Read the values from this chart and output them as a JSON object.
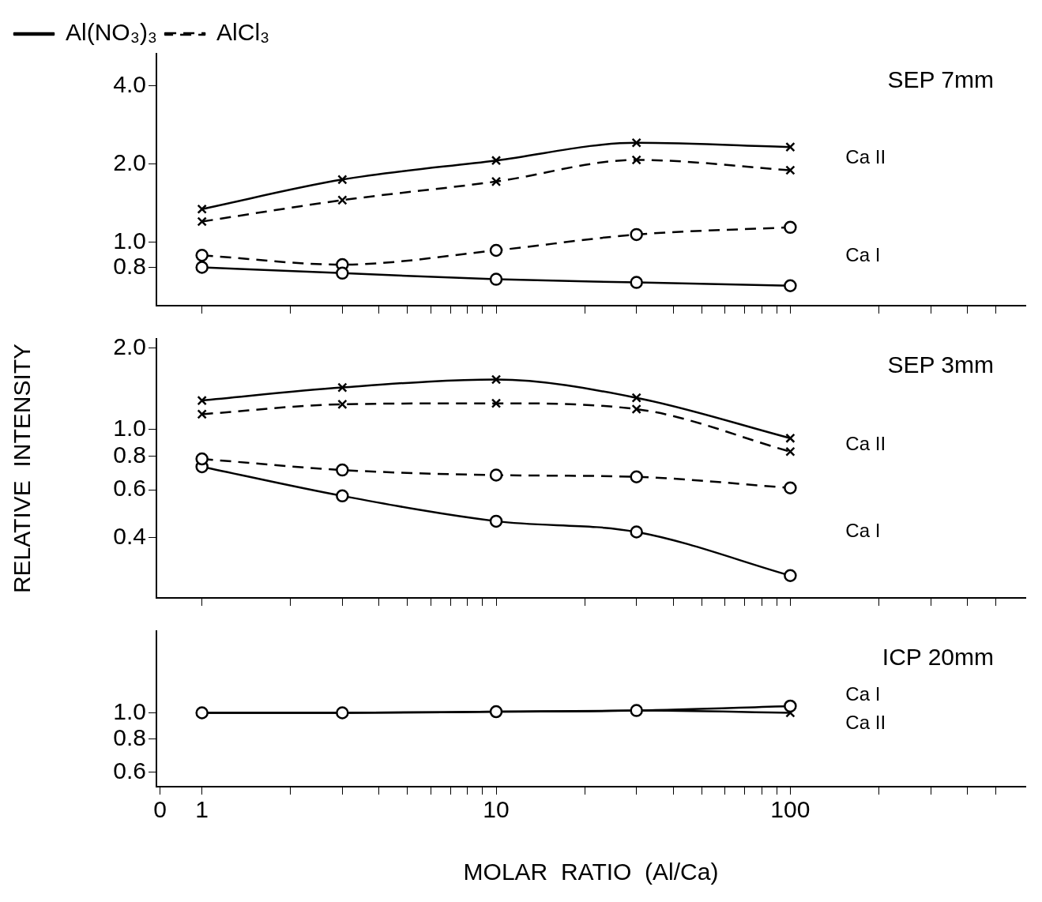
{
  "chart_data": [
    {
      "type": "line",
      "log": "xy",
      "grid": false,
      "legend": "top left",
      "tick_labels": "y",
      "annotations": [
        "SEP 7mm",
        "Ca II",
        "Ca I"
      ],
      "x": [
        1,
        3,
        10,
        30,
        100
      ],
      "xlim": [
        0,
        630
      ],
      "xticks": [
        1,
        {
          "value": 2,
          "label": null
        },
        {
          "value": 3,
          "label": null
        },
        {
          "value": 4,
          "label": null
        },
        {
          "value": 5,
          "label": null
        },
        {
          "value": 6,
          "label": null
        },
        {
          "value": 7,
          "label": null
        },
        {
          "value": 8,
          "label": null
        },
        {
          "value": 9,
          "label": null
        },
        10,
        {
          "value": 20,
          "label": null
        },
        {
          "value": 30,
          "label": null
        },
        {
          "value": 40,
          "label": null
        },
        {
          "value": 50,
          "label": null
        },
        {
          "value": 60,
          "label": null
        },
        {
          "value": 70,
          "label": null
        },
        {
          "value": 80,
          "label": null
        },
        {
          "value": 90,
          "label": null
        },
        100,
        {
          "value": 200,
          "label": null
        },
        {
          "value": 300,
          "label": null
        },
        {
          "value": 400,
          "label": null
        },
        {
          "value": 500,
          "label": null
        }
      ],
      "ylim": [
        0.57,
        5.3
      ],
      "yticks": [
        {
          "value": 0.8,
          "label": "0.8"
        },
        {
          "value": 1,
          "label": "1.0"
        },
        {
          "value": 2,
          "label": "2.0"
        },
        {
          "value": 4,
          "label": "4.0"
        }
      ],
      "series": [
        {
          "name": "Al(NO₃)₃",
          "color": "#000000",
          "marker": "cross",
          "line_style": "solid",
          "values": [
            1.34,
            1.74,
            2.06,
            2.41,
            2.32
          ]
        },
        {
          "name": "AlCl₃",
          "color": "#000000",
          "marker": "cross",
          "line_style": "dashed",
          "values": [
            1.2,
            1.45,
            1.71,
            2.07,
            1.89
          ]
        },
        {
          "color": "#000000",
          "marker": "circle",
          "line_style": "solid",
          "values": [
            0.8,
            0.76,
            0.72,
            0.7,
            0.68
          ]
        },
        {
          "color": "#000000",
          "marker": "circle",
          "line_style": "dashed",
          "values": [
            0.89,
            0.82,
            0.93,
            1.07,
            1.14
          ]
        }
      ]
    },
    {
      "type": "line",
      "log": "xy",
      "grid": false,
      "legend": false,
      "tick_labels": "y",
      "ylabel": "RELATIVE  INTENSITY",
      "annotations": [
        "SEP 3mm",
        "Ca II",
        "Ca I"
      ],
      "x": [
        1,
        3,
        10,
        30,
        100
      ],
      "xlim": [
        0,
        630
      ],
      "xticks": [
        1,
        {
          "value": 2,
          "label": null
        },
        {
          "value": 3,
          "label": null
        },
        {
          "value": 4,
          "label": null
        },
        {
          "value": 5,
          "label": null
        },
        {
          "value": 6,
          "label": null
        },
        {
          "value": 7,
          "label": null
        },
        {
          "value": 8,
          "label": null
        },
        {
          "value": 9,
          "label": null
        },
        10,
        {
          "value": 20,
          "label": null
        },
        {
          "value": 30,
          "label": null
        },
        {
          "value": 40,
          "label": null
        },
        {
          "value": 50,
          "label": null
        },
        {
          "value": 60,
          "label": null
        },
        {
          "value": 70,
          "label": null
        },
        {
          "value": 80,
          "label": null
        },
        {
          "value": 90,
          "label": null
        },
        100,
        {
          "value": 200,
          "label": null
        },
        {
          "value": 300,
          "label": null
        },
        {
          "value": 400,
          "label": null
        },
        {
          "value": 500,
          "label": null
        }
      ],
      "ylim": [
        0.24,
        2.16
      ],
      "yticks": [
        {
          "value": 0.4,
          "label": "0.4"
        },
        {
          "value": 0.6,
          "label": "0.6"
        },
        {
          "value": 0.8,
          "label": "0.8"
        },
        {
          "value": 1,
          "label": "1.0"
        },
        {
          "value": 2,
          "label": "2.0"
        }
      ],
      "series": [
        {
          "color": "#000000",
          "marker": "cross",
          "line_style": "solid",
          "values": [
            1.28,
            1.43,
            1.53,
            1.31,
            0.93
          ]
        },
        {
          "color": "#000000",
          "marker": "cross",
          "line_style": "dashed",
          "values": [
            1.14,
            1.24,
            1.25,
            1.19,
            0.83
          ]
        },
        {
          "color": "#000000",
          "marker": "circle",
          "line_style": "dashed",
          "values": [
            0.78,
            0.71,
            0.68,
            0.67,
            0.61
          ]
        },
        {
          "color": "#000000",
          "marker": "circle",
          "line_style": "solid",
          "values": [
            0.73,
            0.57,
            0.46,
            0.42,
            0.29
          ]
        }
      ]
    },
    {
      "type": "line",
      "log": "xy",
      "grid": false,
      "legend": false,
      "xlabel": "MOLAR  RATIO  (Al/Ca)",
      "annotations": [
        "ICP 20mm",
        "Ca I",
        "Ca II"
      ],
      "x": [
        1,
        3,
        10,
        30,
        100
      ],
      "xlim": [
        0,
        630
      ],
      "xticks": [
        0,
        1,
        {
          "value": 2,
          "label": null
        },
        {
          "value": 3,
          "label": null
        },
        {
          "value": 4,
          "label": null
        },
        {
          "value": 5,
          "label": null
        },
        {
          "value": 6,
          "label": null
        },
        {
          "value": 7,
          "label": null
        },
        {
          "value": 8,
          "label": null
        },
        {
          "value": 9,
          "label": null
        },
        10,
        {
          "value": 20,
          "label": null
        },
        {
          "value": 30,
          "label": null
        },
        {
          "value": 40,
          "label": null
        },
        {
          "value": 50,
          "label": null
        },
        {
          "value": 60,
          "label": null
        },
        {
          "value": 70,
          "label": null
        },
        {
          "value": 80,
          "label": null
        },
        {
          "value": 90,
          "label": null
        },
        100,
        {
          "value": 200,
          "label": null
        },
        {
          "value": 300,
          "label": null
        },
        {
          "value": 400,
          "label": null
        },
        {
          "value": 500,
          "label": null
        }
      ],
      "ylim": [
        0.53,
        2.02
      ],
      "yticks": [
        {
          "value": 0.6,
          "label": "0.6"
        },
        {
          "value": 0.8,
          "label": "0.8"
        },
        {
          "value": 1,
          "label": "1.0"
        }
      ],
      "series": [
        {
          "color": "#000000",
          "marker": "circle",
          "line_style": "solid",
          "values": [
            1.0,
            1.0,
            1.01,
            1.02,
            1.06
          ]
        },
        {
          "color": "#000000",
          "marker": "cross",
          "line_style": "solid",
          "values": [
            1.0,
            1.0,
            1.01,
            1.02,
            1.0
          ]
        }
      ]
    }
  ]
}
